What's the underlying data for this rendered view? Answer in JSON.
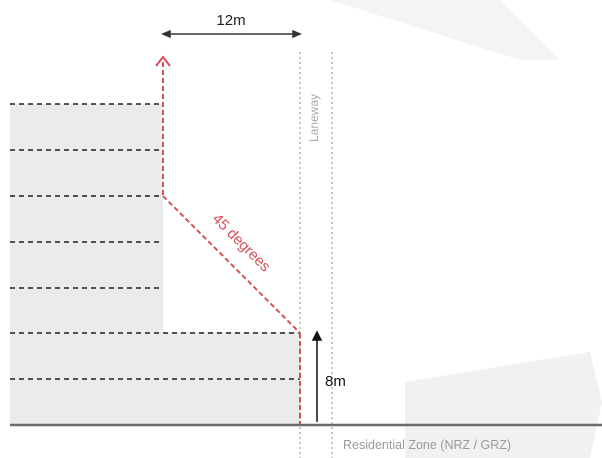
{
  "labels": {
    "top_dimension": "12m",
    "laneway": "Laneway",
    "angle": "45 degrees",
    "height_dimension": "8m",
    "zone": "Residential Zone (NRZ / GRZ)"
  },
  "colors": {
    "building_fill": "#ebebeb",
    "zone_fill": "#f1f1f1",
    "ground": "#6b6b6b",
    "setback_line": "#d8505a",
    "laneway_lines": "#b9b9b9",
    "dimension": "#333333",
    "label_text": "#9a9a9a"
  }
}
